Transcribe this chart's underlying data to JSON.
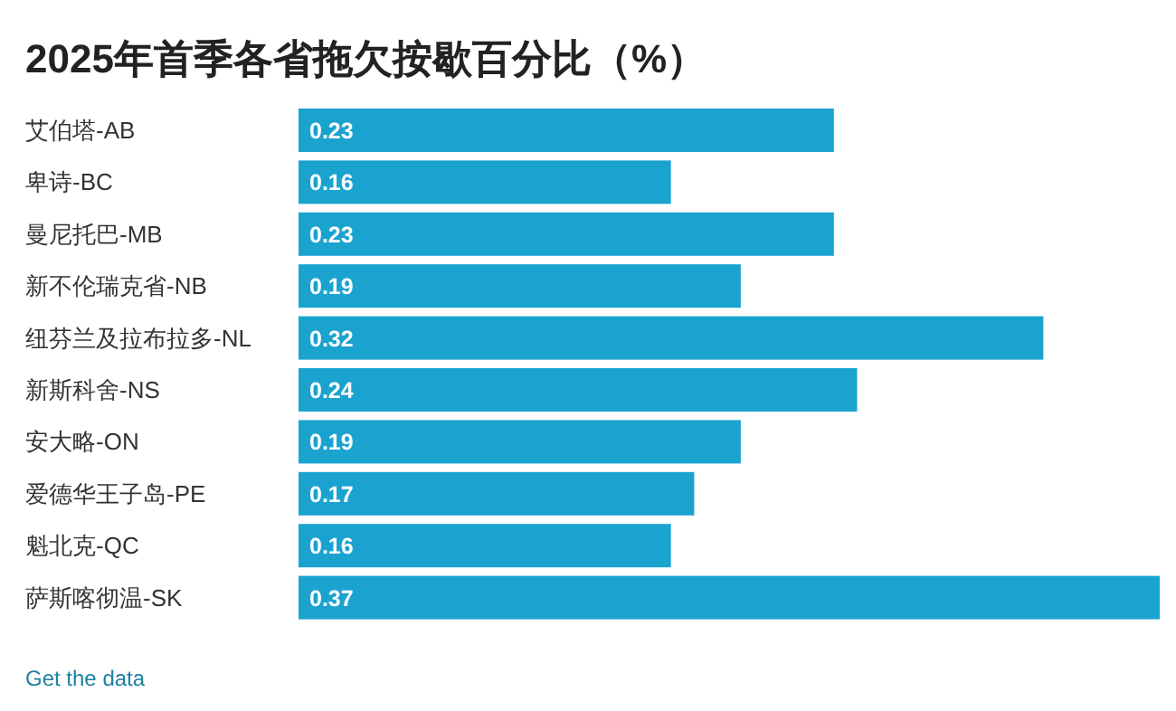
{
  "chart_data": {
    "type": "bar",
    "orientation": "horizontal",
    "title": "2025年首季各省拖欠按歇百分比（%）",
    "categories": [
      "艾伯塔-AB",
      "卑诗-BC",
      "曼尼托巴-MB",
      "新不伦瑞克省-NB",
      "纽芬兰及拉布拉多-NL",
      "新斯科舍-NS",
      "安大略-ON",
      "爱德华王子岛-PE",
      "魁北克-QC",
      "萨斯喀彻温-SK"
    ],
    "values": [
      0.23,
      0.16,
      0.23,
      0.19,
      0.32,
      0.24,
      0.19,
      0.17,
      0.16,
      0.37
    ],
    "color": "#1ba3d0",
    "data_labels": true,
    "annotations": [
      "Get the data"
    ]
  }
}
